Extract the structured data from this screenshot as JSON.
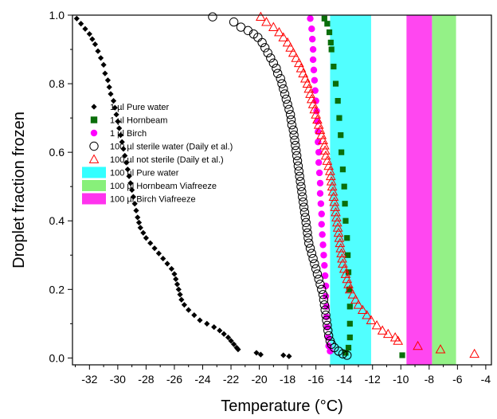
{
  "chart_data": {
    "type": "scatter",
    "title": "",
    "xlabel": "Temperature (°C)",
    "ylabel": "Droplet fraction frozen",
    "xlim": [
      -33.2,
      -3.6
    ],
    "ylim": [
      -0.02,
      1.0
    ],
    "xticks": [
      -32,
      -30,
      -28,
      -26,
      -24,
      -22,
      -20,
      -18,
      -16,
      -14,
      -12,
      -10,
      -8,
      -6,
      -4
    ],
    "yticks": [
      0.0,
      0.2,
      0.4,
      0.6,
      0.8,
      1.0
    ],
    "xtick_labels": [
      "-32",
      "-30",
      "-28",
      "-26",
      "-24",
      "-22",
      "-20",
      "-18",
      "-16",
      "-14",
      "-12",
      "-10",
      "-8",
      "-6",
      "-4"
    ],
    "ytick_labels": [
      "0.0",
      "0.2",
      "0.4",
      "0.6",
      "0.8",
      "1.0"
    ],
    "grid": false,
    "legend_position": "center-left",
    "bands": [
      {
        "name": "100 µl Pure water",
        "x_range": [
          -15.0,
          -12.1
        ],
        "color": "#33ffff",
        "opacity": 0.85
      },
      {
        "name": "100 µl Hornbeam Viafreeze",
        "x_range": [
          -7.8,
          -6.1
        ],
        "color": "#88f07a",
        "opacity": 0.9
      },
      {
        "name": "100 µl Birch Viafreeze",
        "x_range": [
          -9.6,
          -7.8
        ],
        "color": "#ff33ee",
        "opacity": 0.9
      }
    ],
    "series": [
      {
        "name": "1 µl Pure water",
        "marker": "diamond",
        "color": "#000000",
        "points": [
          [
            -32.9,
            0.99
          ],
          [
            -32.6,
            0.975
          ],
          [
            -32.3,
            0.96
          ],
          [
            -32.0,
            0.945
          ],
          [
            -31.8,
            0.93
          ],
          [
            -31.6,
            0.915
          ],
          [
            -31.4,
            0.895
          ],
          [
            -31.2,
            0.875
          ],
          [
            -31.0,
            0.855
          ],
          [
            -30.9,
            0.83
          ],
          [
            -30.7,
            0.81
          ],
          [
            -30.6,
            0.79
          ],
          [
            -30.5,
            0.77
          ],
          [
            -30.3,
            0.75
          ],
          [
            -30.2,
            0.73
          ],
          [
            -30.1,
            0.71
          ],
          [
            -30.0,
            0.69
          ],
          [
            -29.9,
            0.67
          ],
          [
            -29.8,
            0.65
          ],
          [
            -29.7,
            0.63
          ],
          [
            -29.6,
            0.61
          ],
          [
            -29.5,
            0.59
          ],
          [
            -29.4,
            0.57
          ],
          [
            -29.3,
            0.55
          ],
          [
            -29.2,
            0.53
          ],
          [
            -29.1,
            0.51
          ],
          [
            -29.0,
            0.49
          ],
          [
            -28.9,
            0.47
          ],
          [
            -28.8,
            0.45
          ],
          [
            -28.7,
            0.43
          ],
          [
            -28.6,
            0.41
          ],
          [
            -28.5,
            0.395
          ],
          [
            -28.4,
            0.38
          ],
          [
            -28.2,
            0.365
          ],
          [
            -28.0,
            0.35
          ],
          [
            -27.7,
            0.335
          ],
          [
            -27.4,
            0.32
          ],
          [
            -27.1,
            0.305
          ],
          [
            -26.8,
            0.29
          ],
          [
            -26.5,
            0.275
          ],
          [
            -26.2,
            0.26
          ],
          [
            -26.0,
            0.245
          ],
          [
            -25.9,
            0.23
          ],
          [
            -25.8,
            0.215
          ],
          [
            -25.7,
            0.2
          ],
          [
            -25.6,
            0.185
          ],
          [
            -25.5,
            0.17
          ],
          [
            -25.3,
            0.155
          ],
          [
            -25.0,
            0.14
          ],
          [
            -24.6,
            0.125
          ],
          [
            -24.2,
            0.11
          ],
          [
            -23.7,
            0.1
          ],
          [
            -23.2,
            0.09
          ],
          [
            -22.8,
            0.08
          ],
          [
            -22.5,
            0.07
          ],
          [
            -22.2,
            0.06
          ],
          [
            -22.0,
            0.05
          ],
          [
            -21.8,
            0.04
          ],
          [
            -21.6,
            0.03
          ],
          [
            -21.5,
            0.025
          ],
          [
            -20.2,
            0.015
          ],
          [
            -19.9,
            0.01
          ],
          [
            -18.3,
            0.008
          ],
          [
            -17.9,
            0.005
          ]
        ]
      },
      {
        "name": "1 µl Hornbeam",
        "marker": "square",
        "color": "#0a6e0a",
        "points": [
          [
            -15.4,
            0.99
          ],
          [
            -15.2,
            0.975
          ],
          [
            -15.05,
            0.95
          ],
          [
            -14.95,
            0.92
          ],
          [
            -14.9,
            0.9
          ],
          [
            -14.75,
            0.85
          ],
          [
            -14.6,
            0.8
          ],
          [
            -14.45,
            0.75
          ],
          [
            -14.35,
            0.7
          ],
          [
            -14.25,
            0.65
          ],
          [
            -14.2,
            0.6
          ],
          [
            -14.1,
            0.55
          ],
          [
            -14.0,
            0.5
          ],
          [
            -13.95,
            0.45
          ],
          [
            -13.9,
            0.4
          ],
          [
            -13.8,
            0.35
          ],
          [
            -13.75,
            0.3
          ],
          [
            -13.7,
            0.25
          ],
          [
            -13.65,
            0.2
          ],
          [
            -13.6,
            0.15
          ],
          [
            -13.6,
            0.1
          ],
          [
            -13.6,
            0.06
          ],
          [
            -13.7,
            0.03
          ],
          [
            -13.9,
            0.015
          ],
          [
            -9.9,
            0.008
          ]
        ]
      },
      {
        "name": "1 µl Birch",
        "marker": "circle-filled",
        "color": "#ff00ff",
        "points": [
          [
            -16.4,
            0.99
          ],
          [
            -16.3,
            0.96
          ],
          [
            -16.25,
            0.93
          ],
          [
            -16.2,
            0.9
          ],
          [
            -16.2,
            0.87
          ],
          [
            -16.15,
            0.84
          ],
          [
            -16.1,
            0.81
          ],
          [
            -16.05,
            0.78
          ],
          [
            -16.0,
            0.75
          ],
          [
            -15.95,
            0.72
          ],
          [
            -15.9,
            0.69
          ],
          [
            -15.85,
            0.66
          ],
          [
            -15.85,
            0.63
          ],
          [
            -15.8,
            0.6
          ],
          [
            -15.8,
            0.57
          ],
          [
            -15.75,
            0.54
          ],
          [
            -15.7,
            0.51
          ],
          [
            -15.7,
            0.48
          ],
          [
            -15.65,
            0.45
          ],
          [
            -15.6,
            0.42
          ],
          [
            -15.6,
            0.39
          ],
          [
            -15.55,
            0.36
          ],
          [
            -15.5,
            0.33
          ],
          [
            -15.45,
            0.3
          ],
          [
            -15.4,
            0.27
          ],
          [
            -15.35,
            0.24
          ],
          [
            -15.3,
            0.21
          ],
          [
            -15.3,
            0.18
          ],
          [
            -15.25,
            0.15
          ],
          [
            -15.25,
            0.12
          ],
          [
            -15.2,
            0.09
          ],
          [
            -15.15,
            0.06
          ],
          [
            -15.1,
            0.035
          ],
          [
            -15.0,
            0.02
          ]
        ]
      },
      {
        "name": "100 µl sterile water (Daily et al.)",
        "marker": "circle-open",
        "color": "#000000",
        "points": [
          [
            -23.3,
            0.995
          ],
          [
            -21.8,
            0.98
          ],
          [
            -21.3,
            0.965
          ],
          [
            -20.8,
            0.955
          ],
          [
            -20.4,
            0.945
          ],
          [
            -20.1,
            0.935
          ],
          [
            -19.8,
            0.92
          ],
          [
            -19.6,
            0.905
          ],
          [
            -19.4,
            0.89
          ],
          [
            -19.2,
            0.875
          ],
          [
            -19.0,
            0.86
          ],
          [
            -18.8,
            0.845
          ],
          [
            -18.7,
            0.83
          ],
          [
            -18.5,
            0.815
          ],
          [
            -18.4,
            0.8
          ],
          [
            -18.3,
            0.785
          ],
          [
            -18.2,
            0.77
          ],
          [
            -18.1,
            0.755
          ],
          [
            -18.0,
            0.74
          ],
          [
            -17.9,
            0.725
          ],
          [
            -17.8,
            0.71
          ],
          [
            -17.75,
            0.695
          ],
          [
            -17.7,
            0.68
          ],
          [
            -17.6,
            0.665
          ],
          [
            -17.55,
            0.65
          ],
          [
            -17.5,
            0.635
          ],
          [
            -17.45,
            0.62
          ],
          [
            -17.4,
            0.605
          ],
          [
            -17.35,
            0.59
          ],
          [
            -17.3,
            0.575
          ],
          [
            -17.25,
            0.56
          ],
          [
            -17.2,
            0.545
          ],
          [
            -17.15,
            0.53
          ],
          [
            -17.1,
            0.515
          ],
          [
            -17.05,
            0.5
          ],
          [
            -17.0,
            0.485
          ],
          [
            -16.95,
            0.47
          ],
          [
            -16.9,
            0.455
          ],
          [
            -16.85,
            0.44
          ],
          [
            -16.8,
            0.425
          ],
          [
            -16.75,
            0.41
          ],
          [
            -16.7,
            0.395
          ],
          [
            -16.65,
            0.38
          ],
          [
            -16.6,
            0.365
          ],
          [
            -16.55,
            0.35
          ],
          [
            -16.5,
            0.335
          ],
          [
            -16.4,
            0.32
          ],
          [
            -16.3,
            0.305
          ],
          [
            -16.2,
            0.29
          ],
          [
            -16.1,
            0.275
          ],
          [
            -16.0,
            0.26
          ],
          [
            -15.9,
            0.245
          ],
          [
            -15.8,
            0.23
          ],
          [
            -15.7,
            0.215
          ],
          [
            -15.6,
            0.2
          ],
          [
            -15.5,
            0.185
          ],
          [
            -15.45,
            0.17
          ],
          [
            -15.4,
            0.155
          ],
          [
            -15.35,
            0.14
          ],
          [
            -15.3,
            0.125
          ],
          [
            -15.25,
            0.11
          ],
          [
            -15.2,
            0.095
          ],
          [
            -15.15,
            0.08
          ],
          [
            -15.1,
            0.065
          ],
          [
            -15.0,
            0.05
          ],
          [
            -14.9,
            0.04
          ],
          [
            -14.7,
            0.03
          ],
          [
            -14.4,
            0.02
          ],
          [
            -14.1,
            0.012
          ],
          [
            -13.8,
            0.008
          ]
        ]
      },
      {
        "name": "100 µl not sterile (Daily et al.)",
        "marker": "triangle-open",
        "color": "#ff0000",
        "points": [
          [
            -19.9,
            0.995
          ],
          [
            -19.5,
            0.98
          ],
          [
            -19.0,
            0.965
          ],
          [
            -18.6,
            0.95
          ],
          [
            -18.3,
            0.935
          ],
          [
            -18.0,
            0.92
          ],
          [
            -17.8,
            0.905
          ],
          [
            -17.6,
            0.89
          ],
          [
            -17.4,
            0.875
          ],
          [
            -17.2,
            0.86
          ],
          [
            -17.05,
            0.845
          ],
          [
            -16.9,
            0.83
          ],
          [
            -16.75,
            0.815
          ],
          [
            -16.6,
            0.8
          ],
          [
            -16.5,
            0.785
          ],
          [
            -16.4,
            0.77
          ],
          [
            -16.3,
            0.755
          ],
          [
            -16.2,
            0.74
          ],
          [
            -16.1,
            0.725
          ],
          [
            -16.0,
            0.71
          ],
          [
            -15.9,
            0.695
          ],
          [
            -15.8,
            0.68
          ],
          [
            -15.7,
            0.665
          ],
          [
            -15.6,
            0.65
          ],
          [
            -15.5,
            0.635
          ],
          [
            -15.4,
            0.62
          ],
          [
            -15.35,
            0.605
          ],
          [
            -15.3,
            0.59
          ],
          [
            -15.2,
            0.575
          ],
          [
            -15.1,
            0.56
          ],
          [
            -15.0,
            0.545
          ],
          [
            -14.95,
            0.53
          ],
          [
            -14.9,
            0.515
          ],
          [
            -14.85,
            0.5
          ],
          [
            -14.8,
            0.485
          ],
          [
            -14.75,
            0.47
          ],
          [
            -14.7,
            0.455
          ],
          [
            -14.65,
            0.44
          ],
          [
            -14.6,
            0.425
          ],
          [
            -14.55,
            0.41
          ],
          [
            -14.5,
            0.395
          ],
          [
            -14.45,
            0.38
          ],
          [
            -14.4,
            0.365
          ],
          [
            -14.35,
            0.35
          ],
          [
            -14.3,
            0.335
          ],
          [
            -14.25,
            0.32
          ],
          [
            -14.2,
            0.305
          ],
          [
            -14.15,
            0.29
          ],
          [
            -14.1,
            0.275
          ],
          [
            -14.0,
            0.26
          ],
          [
            -13.9,
            0.245
          ],
          [
            -13.8,
            0.23
          ],
          [
            -13.7,
            0.215
          ],
          [
            -13.6,
            0.2
          ],
          [
            -13.4,
            0.185
          ],
          [
            -13.2,
            0.17
          ],
          [
            -13.0,
            0.155
          ],
          [
            -12.7,
            0.14
          ],
          [
            -12.4,
            0.125
          ],
          [
            -12.1,
            0.11
          ],
          [
            -11.7,
            0.095
          ],
          [
            -11.3,
            0.08
          ],
          [
            -10.9,
            0.07
          ],
          [
            -10.4,
            0.06
          ],
          [
            -10.2,
            0.05
          ],
          [
            -8.8,
            0.035
          ],
          [
            -7.2,
            0.025
          ],
          [
            -4.8,
            0.012
          ]
        ]
      }
    ],
    "legend": [
      {
        "label": "1 µl Pure water",
        "marker": "diamond",
        "color": "#000000"
      },
      {
        "label": "1 µl Hornbeam",
        "marker": "square",
        "color": "#0a6e0a"
      },
      {
        "label": "1 µl Birch",
        "marker": "circle-filled",
        "color": "#ff00ff"
      },
      {
        "label": "100 µl sterile water (Daily et al.)",
        "marker": "circle-open",
        "color": "#000000"
      },
      {
        "label": "100 µl not sterile (Daily et al.)",
        "marker": "triangle-open",
        "color": "#ff0000"
      },
      {
        "label": "100 µl Pure water",
        "marker": "band",
        "color": "#33ffff"
      },
      {
        "label": "100 µl Hornbeam Viafreeze",
        "marker": "band",
        "color": "#88f07a"
      },
      {
        "label": "100 µl Birch Viafreeze",
        "marker": "band",
        "color": "#ff33ee"
      }
    ]
  }
}
